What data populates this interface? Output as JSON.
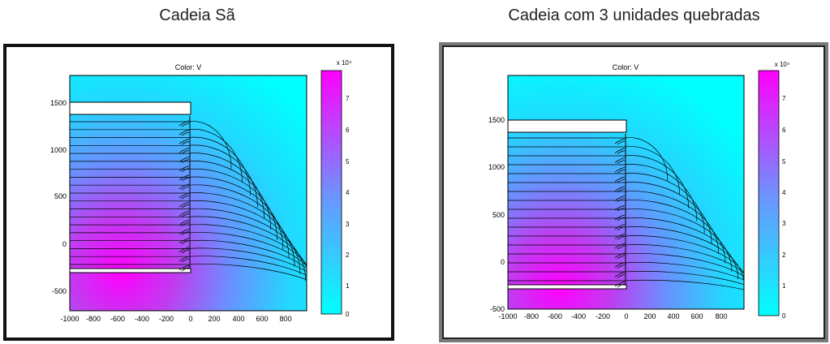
{
  "headings": {
    "left": "Cadeia Sã",
    "right": "Cadeia com 3 unidades quebradas"
  },
  "plot_common": {
    "title": "Color: V",
    "x_ticks": [
      "-1000",
      "-800",
      "-600",
      "-400",
      "-200",
      "0",
      "200",
      "400",
      "600",
      "800"
    ],
    "colorbar_exponent": "x 10⁴",
    "colorbar_ticks": [
      "0",
      "1",
      "2",
      "3",
      "4",
      "5",
      "6",
      "7"
    ]
  },
  "panels": [
    {
      "id": "left",
      "y_ticks": [
        "1500",
        "1000",
        "500",
        "0",
        "-500"
      ],
      "y_range": [
        -700,
        1800
      ]
    },
    {
      "id": "right",
      "y_ticks": [
        "1500",
        "1000",
        "500",
        "0",
        "-500"
      ],
      "y_range": [
        -520,
        1960
      ]
    }
  ],
  "colors": {
    "cyan": "#00ffff",
    "magenta": "#ff00ff",
    "contour": "#000000"
  }
}
